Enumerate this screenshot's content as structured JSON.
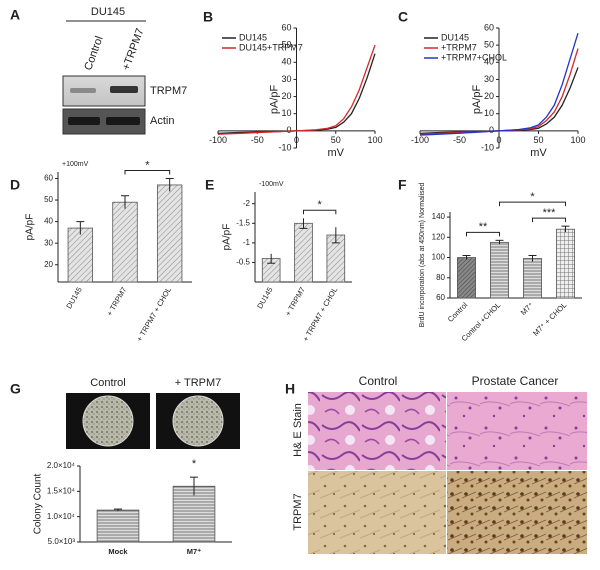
{
  "panels": {
    "A": {
      "letter": "A",
      "title": "DU145",
      "lanes": [
        "Control",
        "+TRPM7"
      ],
      "rows": [
        "TRPM7",
        "Actin"
      ]
    },
    "B": {
      "letter": "B"
    },
    "C": {
      "letter": "C"
    },
    "D": {
      "letter": "D"
    },
    "E": {
      "letter": "E"
    },
    "F": {
      "letter": "F"
    },
    "G": {
      "letter": "G",
      "images": [
        "Control",
        "+ TRPM7"
      ]
    },
    "H": {
      "letter": "H",
      "columns": [
        "Control",
        "Prostate Cancer"
      ],
      "rows": [
        "H& E Stain",
        "TRPM7"
      ]
    }
  },
  "chart_data": [
    {
      "type": "line",
      "xlabel": "mV",
      "ylabel": "pA/pF",
      "x": [
        -100,
        -75,
        -50,
        -25,
        0,
        25,
        40,
        50,
        60,
        70,
        80,
        90,
        100
      ],
      "series": [
        {
          "name": "DU145",
          "color": "#222222",
          "values": [
            -1.5,
            -1,
            -0.7,
            -0.4,
            0,
            0.4,
            1,
            2,
            5,
            10,
            19,
            31,
            45
          ]
        },
        {
          "name": "DU145+TRPM7",
          "color": "#d62728",
          "values": [
            -2,
            -1.5,
            -1,
            -0.5,
            0,
            0.6,
            1.5,
            3,
            7,
            14,
            24,
            37,
            50
          ]
        }
      ],
      "xlim": [
        -100,
        100
      ],
      "xticks": [
        -100,
        -50,
        0,
        50,
        100
      ],
      "ylim": [
        -10,
        60
      ],
      "yticks": [
        -10,
        0,
        10,
        20,
        30,
        40,
        50,
        60
      ]
    },
    {
      "type": "line",
      "xlabel": "mV",
      "ylabel": "pA/pF",
      "x": [
        -100,
        -75,
        -50,
        -25,
        0,
        25,
        40,
        50,
        60,
        70,
        80,
        90,
        100
      ],
      "series": [
        {
          "name": "DU145",
          "color": "#222222",
          "values": [
            -1.5,
            -1,
            -0.7,
            -0.4,
            0,
            0.4,
            0.8,
            1.5,
            4,
            8,
            15,
            25,
            37
          ]
        },
        {
          "name": "+TRPM7",
          "color": "#d62728",
          "values": [
            -2,
            -1.5,
            -1,
            -0.5,
            0,
            0.6,
            1.2,
            2.5,
            6,
            11,
            20,
            33,
            48
          ]
        },
        {
          "name": "+TRPM7+CHOL",
          "color": "#2233cc",
          "values": [
            -2.5,
            -2,
            -1.4,
            -0.7,
            0,
            0.8,
            1.8,
            3.5,
            8,
            15,
            27,
            42,
            57
          ]
        }
      ],
      "xlim": [
        -100,
        100
      ],
      "xticks": [
        -100,
        -50,
        0,
        50,
        100
      ],
      "ylim": [
        -10,
        60
      ],
      "yticks": [
        -10,
        0,
        10,
        20,
        30,
        40,
        50,
        60
      ]
    },
    {
      "type": "bar",
      "ylabel": "pA/pF",
      "annotation": "+100mV",
      "categories": [
        "DU145",
        "+ TRPM7",
        "+ TRPM7 + CHOL"
      ],
      "values": [
        37,
        49,
        57
      ],
      "errors": [
        3,
        3,
        3
      ],
      "ylim": [
        12,
        63
      ],
      "yticks": [
        20,
        30,
        40,
        50,
        60
      ],
      "significance": [
        {
          "label": "*",
          "categories": [
            "+ TRPM7",
            "+ TRPM7 + CHOL"
          ]
        }
      ]
    },
    {
      "type": "bar",
      "ylabel": "pA/pF",
      "annotation": "-100mV",
      "categories": [
        "DU145",
        "+ TRPM7",
        "+ TRPM7 + CHOL"
      ],
      "values": [
        -0.6,
        -1.5,
        -1.2
      ],
      "errors": [
        0.12,
        0.13,
        0.2
      ],
      "ylim": [
        0,
        -2.3
      ],
      "yticks": [
        -2,
        -1.5,
        -1,
        -0.5
      ],
      "significance": [
        {
          "label": "*",
          "categories": [
            "+ TRPM7",
            "+ TRPM7 + CHOL"
          ]
        }
      ]
    },
    {
      "type": "bar",
      "ylabel": "BrdU incorporation (abs at 450nm) Normalised",
      "categories": [
        "Control",
        "Control +CHOL",
        "M7⁺",
        "M7⁺ + CHOL"
      ],
      "values": [
        100,
        115,
        99,
        128
      ],
      "errors": [
        2,
        2,
        3,
        3
      ],
      "ylim": [
        60,
        145
      ],
      "yticks": [
        60,
        80,
        100,
        120,
        140
      ],
      "significance": [
        {
          "label": "**",
          "categories": [
            "Control",
            "Control +CHOL"
          ]
        },
        {
          "label": "***",
          "categories": [
            "M7⁺",
            "M7⁺ + CHOL"
          ]
        },
        {
          "label": "*",
          "categories": [
            "Control +CHOL",
            "M7⁺ + CHOL"
          ]
        }
      ]
    },
    {
      "type": "bar",
      "ylabel": "Colony Count",
      "categories": [
        "Mock",
        "M7⁺"
      ],
      "values": [
        11300,
        16000
      ],
      "errors": [
        200,
        1800
      ],
      "ylim": [
        5000,
        20000
      ],
      "yticks": [
        {
          "value": 5000,
          "label": "5.0×10³"
        },
        {
          "value": 10000,
          "label": "1.0×10⁴"
        },
        {
          "value": 15000,
          "label": "1.5×10⁴"
        },
        {
          "value": 20000,
          "label": "2.0×10⁴"
        }
      ],
      "significance": [
        {
          "label": "*",
          "categories": [
            "M7⁺",
            "M7⁺"
          ]
        }
      ]
    }
  ]
}
